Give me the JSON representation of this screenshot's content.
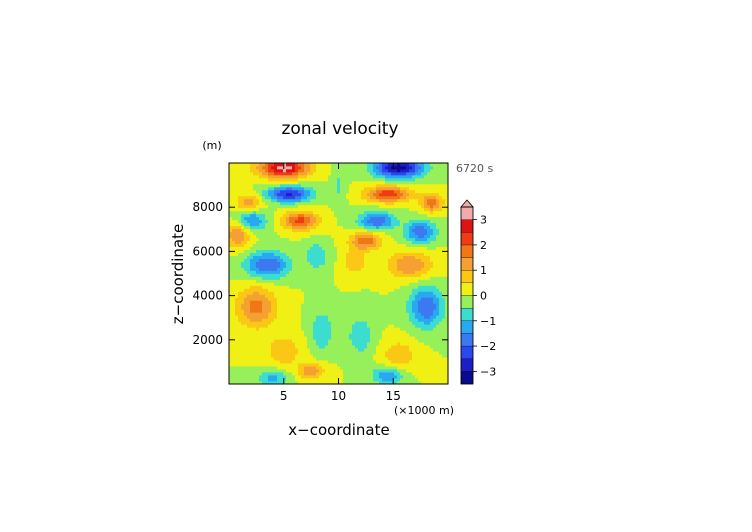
{
  "chart_data": {
    "type": "heatmap",
    "title": "zonal velocity",
    "time_label": "6720 s",
    "xlabel": "x−coordinate",
    "ylabel": "z−coordinate",
    "x_unit": "(×1000 m)",
    "y_unit": "(m)",
    "xlim": [
      0,
      20
    ],
    "ylim": [
      0,
      10000
    ],
    "x_ticks": [
      {
        "value": 5,
        "label": "5"
      },
      {
        "value": 10,
        "label": "10"
      },
      {
        "value": 15,
        "label": "15"
      }
    ],
    "y_ticks": [
      {
        "value": 2000,
        "label": "2000"
      },
      {
        "value": 4000,
        "label": "4000"
      },
      {
        "value": 6000,
        "label": "6000"
      },
      {
        "value": 8000,
        "label": "8000"
      }
    ],
    "colorbar": {
      "min": -3.5,
      "max": 3.5,
      "step": 0.5,
      "tick_values": [
        3,
        2,
        1,
        0,
        -1,
        -2,
        -3
      ],
      "tick_labels": [
        "3",
        "2",
        "1",
        "0",
        "−1",
        "−2",
        "−3"
      ],
      "levels": [
        {
          "from": -3.5,
          "to": -3.0,
          "color": "#0a0a8c"
        },
        {
          "from": -3.0,
          "to": -2.5,
          "color": "#1e1ec8"
        },
        {
          "from": -2.5,
          "to": -2.0,
          "color": "#2a48f0"
        },
        {
          "from": -2.0,
          "to": -1.5,
          "color": "#3c78f0"
        },
        {
          "from": -1.5,
          "to": -1.0,
          "color": "#28a8f0"
        },
        {
          "from": -1.0,
          "to": -0.5,
          "color": "#3cdcd0"
        },
        {
          "from": -0.5,
          "to": 0.0,
          "color": "#96f05a"
        },
        {
          "from": 0.0,
          "to": 0.5,
          "color": "#f0f014"
        },
        {
          "from": 0.5,
          "to": 1.0,
          "color": "#fac814"
        },
        {
          "from": 1.0,
          "to": 1.5,
          "color": "#f5a032"
        },
        {
          "from": 1.5,
          "to": 2.0,
          "color": "#f07814"
        },
        {
          "from": 2.0,
          "to": 2.5,
          "color": "#f03c14"
        },
        {
          "from": 2.5,
          "to": 3.0,
          "color": "#dc1414"
        },
        {
          "from": 3.0,
          "to": 3.5,
          "color": "#f5aaaa"
        }
      ]
    },
    "features": [
      {
        "x": 5.0,
        "z": 9800,
        "sx": 2.2,
        "sz": 450,
        "amp": 3.3
      },
      {
        "x": 15.5,
        "z": 9800,
        "sx": 2.2,
        "sz": 450,
        "amp": -3.3
      },
      {
        "x": 5.5,
        "z": 8600,
        "sx": 2.0,
        "sz": 350,
        "amp": -2.6
      },
      {
        "x": 14.5,
        "z": 8600,
        "sx": 2.0,
        "sz": 350,
        "amp": 2.4
      },
      {
        "x": 1.8,
        "z": 8200,
        "sx": 1.2,
        "sz": 400,
        "amp": 1.3
      },
      {
        "x": 18.5,
        "z": 8200,
        "sx": 1.0,
        "sz": 400,
        "amp": 1.8
      },
      {
        "x": 2.0,
        "z": 7400,
        "sx": 1.4,
        "sz": 500,
        "amp": -1.6
      },
      {
        "x": 6.5,
        "z": 7400,
        "sx": 1.6,
        "sz": 400,
        "amp": 2.2
      },
      {
        "x": 13.5,
        "z": 7400,
        "sx": 1.6,
        "sz": 400,
        "amp": -2.0
      },
      {
        "x": 17.5,
        "z": 6900,
        "sx": 1.4,
        "sz": 500,
        "amp": -1.9
      },
      {
        "x": 0.8,
        "z": 6800,
        "sx": 1.2,
        "sz": 600,
        "amp": 1.6
      },
      {
        "x": 12.5,
        "z": 6500,
        "sx": 1.4,
        "sz": 400,
        "amp": 1.8
      },
      {
        "x": 3.5,
        "z": 5400,
        "sx": 2.0,
        "sz": 600,
        "amp": -2.0
      },
      {
        "x": 16.5,
        "z": 5400,
        "sx": 2.0,
        "sz": 600,
        "amp": 1.5
      },
      {
        "x": 8.0,
        "z": 5800,
        "sx": 1.0,
        "sz": 600,
        "amp": -1.0
      },
      {
        "x": 11.5,
        "z": 5600,
        "sx": 1.0,
        "sz": 600,
        "amp": 1.0
      },
      {
        "x": 2.5,
        "z": 3500,
        "sx": 1.8,
        "sz": 900,
        "amp": 1.7
      },
      {
        "x": 18.0,
        "z": 3500,
        "sx": 1.5,
        "sz": 900,
        "amp": -2.0
      },
      {
        "x": 8.5,
        "z": 2400,
        "sx": 1.0,
        "sz": 900,
        "amp": -1.0
      },
      {
        "x": 12.0,
        "z": 2200,
        "sx": 1.2,
        "sz": 900,
        "amp": -0.9
      },
      {
        "x": 5.0,
        "z": 1500,
        "sx": 1.6,
        "sz": 700,
        "amp": 0.9
      },
      {
        "x": 15.5,
        "z": 1300,
        "sx": 1.6,
        "sz": 700,
        "amp": 0.9
      },
      {
        "x": 10.0,
        "z": 9000,
        "sx": 0.6,
        "sz": 800,
        "amp": -0.6
      },
      {
        "x": 14.5,
        "z": 400,
        "sx": 1.4,
        "sz": 400,
        "amp": -1.5
      },
      {
        "x": 4.0,
        "z": 300,
        "sx": 1.4,
        "sz": 350,
        "amp": -1.2
      },
      {
        "x": 7.5,
        "z": 600,
        "sx": 1.2,
        "sz": 350,
        "amp": 1.4
      }
    ]
  }
}
